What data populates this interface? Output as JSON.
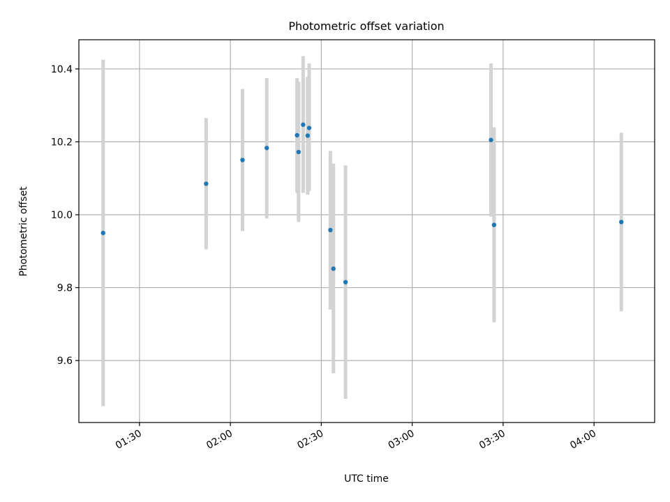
{
  "chart_data": {
    "type": "scatter",
    "title": "Photometric offset variation",
    "xlabel": "UTC time",
    "ylabel": "Photometric offset",
    "xlim": [
      "01:10",
      "04:20"
    ],
    "ylim": [
      9.43,
      10.48
    ],
    "xticks": [
      "01:30",
      "02:00",
      "02:30",
      "03:00",
      "03:30",
      "04:00"
    ],
    "yticks": [
      9.6,
      9.8,
      10.0,
      10.2,
      10.4
    ],
    "ytick_labels": [
      "9.6",
      "9.8",
      "10.0",
      "10.2",
      "10.4"
    ],
    "grid": true,
    "error_bar_color": "#d3d3d3",
    "marker_color": "#1f77b4",
    "points": [
      {
        "x": "01:18",
        "y": 9.95,
        "ylo": 9.475,
        "yhi": 10.425
      },
      {
        "x": "01:52",
        "y": 10.085,
        "ylo": 9.905,
        "yhi": 10.265
      },
      {
        "x": "02:04",
        "y": 10.15,
        "ylo": 9.955,
        "yhi": 10.345
      },
      {
        "x": "02:12",
        "y": 10.183,
        "ylo": 9.99,
        "yhi": 10.375
      },
      {
        "x": "02:22",
        "y": 10.218,
        "ylo": 10.06,
        "yhi": 10.375
      },
      {
        "x": "02:22:30",
        "y": 10.172,
        "ylo": 9.98,
        "yhi": 10.365
      },
      {
        "x": "02:24",
        "y": 10.247,
        "ylo": 10.06,
        "yhi": 10.435
      },
      {
        "x": "02:25:30",
        "y": 10.217,
        "ylo": 10.055,
        "yhi": 10.378
      },
      {
        "x": "02:26",
        "y": 10.238,
        "ylo": 10.065,
        "yhi": 10.415
      },
      {
        "x": "02:33",
        "y": 9.958,
        "ylo": 9.74,
        "yhi": 10.175
      },
      {
        "x": "02:34",
        "y": 9.852,
        "ylo": 9.565,
        "yhi": 10.14
      },
      {
        "x": "02:38",
        "y": 9.815,
        "ylo": 9.495,
        "yhi": 10.135
      },
      {
        "x": "03:26",
        "y": 10.205,
        "ylo": 9.995,
        "yhi": 10.415
      },
      {
        "x": "03:27",
        "y": 9.972,
        "ylo": 9.705,
        "yhi": 10.24
      },
      {
        "x": "04:09",
        "y": 9.98,
        "ylo": 9.735,
        "yhi": 10.225
      }
    ]
  }
}
